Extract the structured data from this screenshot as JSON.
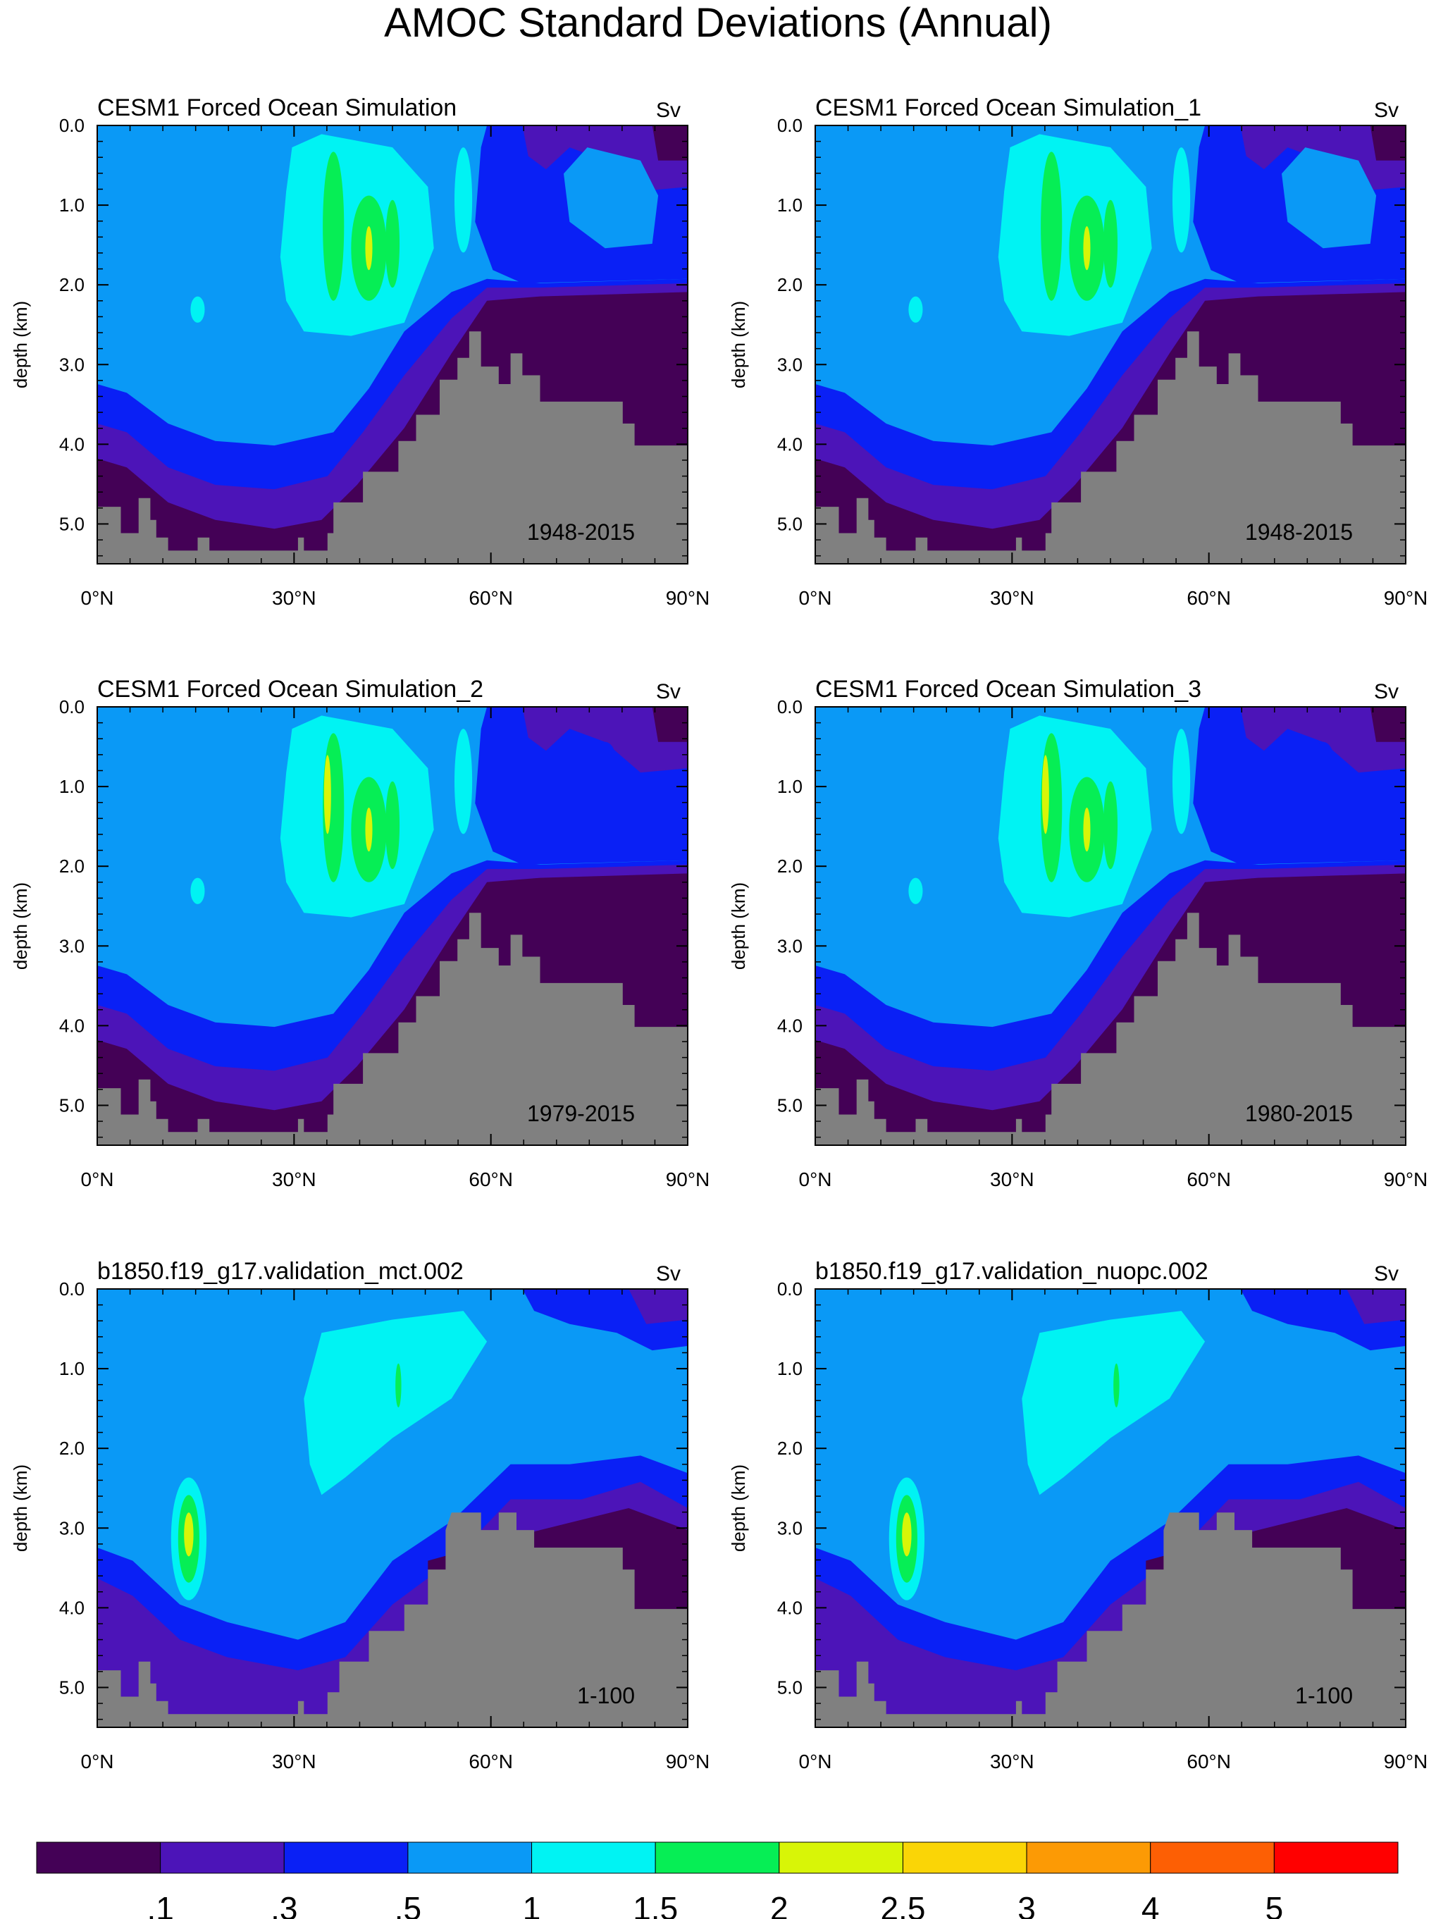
{
  "figure_title": "AMOC Standard Deviations (Annual)",
  "colors": {
    "levels": [
      "#440156",
      "#4c14b8",
      "#0a20f5",
      "#0a99f6",
      "#00f3f3",
      "#06ee55",
      "#d8f507",
      "#fad506",
      "#fc9a05",
      "#fd5f04",
      "#ff0000"
    ],
    "land": "#808080"
  },
  "chart_data": [
    {
      "type": "contour",
      "title": "CESM1 Forced Ocean Simulation",
      "units": "Sv",
      "period": "1948-2015",
      "ylabel": "depth (km)",
      "x_ticks": [
        "0°N",
        "30°N",
        "60°N",
        "90°N"
      ],
      "y_ticks": [
        "0.0",
        "1.0",
        "2.0",
        "3.0",
        "4.0",
        "5.0"
      ],
      "xlim": [
        0,
        90
      ],
      "ylim": [
        5.5,
        0
      ]
    },
    {
      "type": "contour",
      "title": "CESM1 Forced Ocean Simulation_1",
      "units": "Sv",
      "period": "1948-2015",
      "ylabel": "depth (km)",
      "x_ticks": [
        "0°N",
        "30°N",
        "60°N",
        "90°N"
      ],
      "y_ticks": [
        "0.0",
        "1.0",
        "2.0",
        "3.0",
        "4.0",
        "5.0"
      ],
      "xlim": [
        0,
        90
      ],
      "ylim": [
        5.5,
        0
      ]
    },
    {
      "type": "contour",
      "title": "CESM1 Forced Ocean Simulation_2",
      "units": "Sv",
      "period": "1979-2015",
      "ylabel": "depth (km)",
      "x_ticks": [
        "0°N",
        "30°N",
        "60°N",
        "90°N"
      ],
      "y_ticks": [
        "0.0",
        "1.0",
        "2.0",
        "3.0",
        "4.0",
        "5.0"
      ],
      "xlim": [
        0,
        90
      ],
      "ylim": [
        5.5,
        0
      ]
    },
    {
      "type": "contour",
      "title": "CESM1 Forced Ocean Simulation_3",
      "units": "Sv",
      "period": "1980-2015",
      "ylabel": "depth (km)",
      "x_ticks": [
        "0°N",
        "30°N",
        "60°N",
        "90°N"
      ],
      "y_ticks": [
        "0.0",
        "1.0",
        "2.0",
        "3.0",
        "4.0",
        "5.0"
      ],
      "xlim": [
        0,
        90
      ],
      "ylim": [
        5.5,
        0
      ]
    },
    {
      "type": "contour",
      "title": "b1850.f19_g17.validation_mct.002",
      "units": "Sv",
      "period": "1-100",
      "ylabel": "depth (km)",
      "x_ticks": [
        "0°N",
        "30°N",
        "60°N",
        "90°N"
      ],
      "y_ticks": [
        "0.0",
        "1.0",
        "2.0",
        "3.0",
        "4.0",
        "5.0"
      ],
      "xlim": [
        0,
        90
      ],
      "ylim": [
        5.5,
        0
      ]
    },
    {
      "type": "contour",
      "title": "b1850.f19_g17.validation_nuopc.002",
      "units": "Sv",
      "period": "1-100",
      "ylabel": "depth (km)",
      "x_ticks": [
        "0°N",
        "30°N",
        "60°N",
        "90°N"
      ],
      "y_ticks": [
        "0.0",
        "1.0",
        "2.0",
        "3.0",
        "4.0",
        "5.0"
      ],
      "xlim": [
        0,
        90
      ],
      "ylim": [
        5.5,
        0
      ]
    }
  ],
  "colorbar": {
    "labels": [
      ".1",
      ".3",
      ".5",
      "1",
      "1.5",
      "2",
      "2.5",
      "3",
      "4",
      "5"
    ]
  }
}
